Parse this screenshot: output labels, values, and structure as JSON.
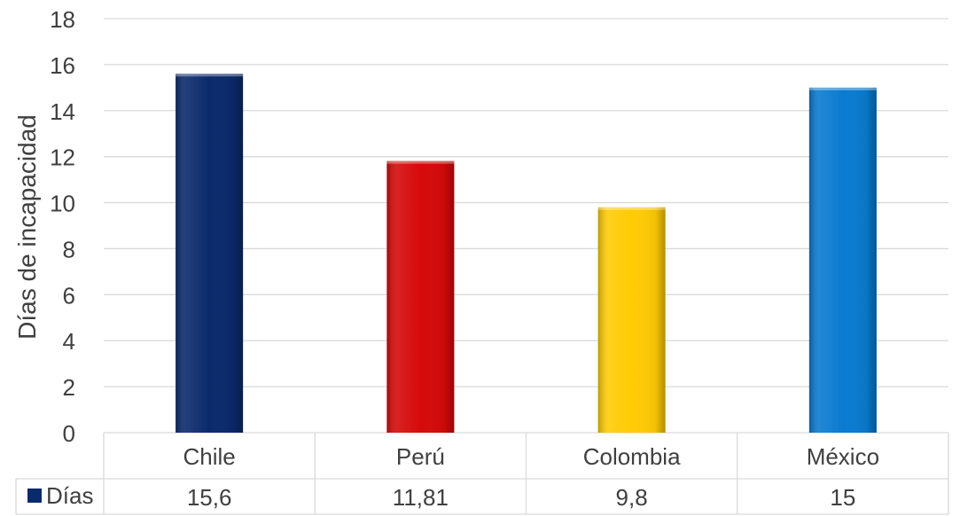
{
  "chart_data": {
    "type": "bar",
    "categories": [
      "Chile",
      "Perú",
      "Colombia",
      "México"
    ],
    "series": [
      {
        "name": "Días",
        "values": [
          15.6,
          11.81,
          9.8,
          15
        ],
        "value_labels": [
          "15,6",
          "11,81",
          "9,8",
          "15"
        ],
        "colors": [
          "#0B2A6B",
          "#D50A0A",
          "#FFCB05",
          "#0A7BD0"
        ]
      }
    ],
    "ylabel": "Días de incapacidad",
    "xlabel": "",
    "ylim": [
      0,
      18
    ],
    "yticks": [
      0,
      2,
      4,
      6,
      8,
      10,
      12,
      14,
      16,
      18
    ],
    "grid": true,
    "legend": "data-table-left",
    "data_table": true
  }
}
